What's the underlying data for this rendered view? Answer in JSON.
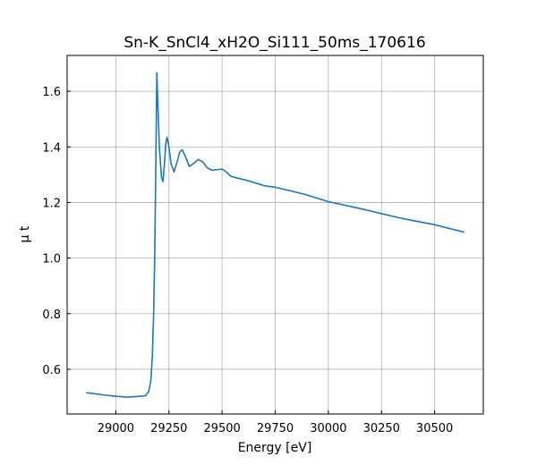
{
  "chart_data": {
    "type": "line",
    "title": "Sn-K_SnCl4_xH2O_Si111_50ms_170616",
    "x_label": "Energy [eV]",
    "y_label": "μ t",
    "x": [
      28860,
      28950,
      29000,
      29050,
      29100,
      29140,
      29155,
      29165,
      29172,
      29178,
      29183,
      29187,
      29190,
      29193,
      29198,
      29205,
      29215,
      29222,
      29228,
      29235,
      29241,
      29250,
      29260,
      29274,
      29290,
      29300,
      29312,
      29325,
      29346,
      29365,
      29388,
      29410,
      29430,
      29452,
      29475,
      29500,
      29520,
      29540,
      29560,
      29615,
      29700,
      29750,
      29886,
      30000,
      30140,
      30350,
      30500,
      30640
    ],
    "series": [
      {
        "name": "μ t",
        "color": "#1f77b4",
        "values": [
          0.516,
          0.507,
          0.503,
          0.5,
          0.502,
          0.505,
          0.52,
          0.56,
          0.65,
          0.8,
          1.0,
          1.25,
          1.45,
          1.667,
          1.55,
          1.4,
          1.29,
          1.275,
          1.33,
          1.41,
          1.435,
          1.4,
          1.34,
          1.31,
          1.35,
          1.38,
          1.39,
          1.37,
          1.33,
          1.34,
          1.355,
          1.345,
          1.325,
          1.316,
          1.318,
          1.32,
          1.31,
          1.295,
          1.29,
          1.28,
          1.26,
          1.255,
          1.23,
          1.203,
          1.18,
          1.142,
          1.12,
          1.093
        ]
      }
    ],
    "xlim": [
      28771,
      30729
    ],
    "ylim": [
      0.439,
      1.729
    ],
    "xticks": [
      29000,
      29250,
      29500,
      29750,
      30000,
      30250,
      30500
    ],
    "yticks": [
      {
        "value": 0.6,
        "label": "0.6"
      },
      {
        "value": 0.8,
        "label": "0.8"
      },
      {
        "value": 1.0,
        "label": "1.0"
      },
      {
        "value": 1.2,
        "label": "1.2"
      },
      {
        "value": 1.4,
        "label": "1.4"
      },
      {
        "value": 1.6,
        "label": "1.6"
      }
    ],
    "grid": true
  }
}
